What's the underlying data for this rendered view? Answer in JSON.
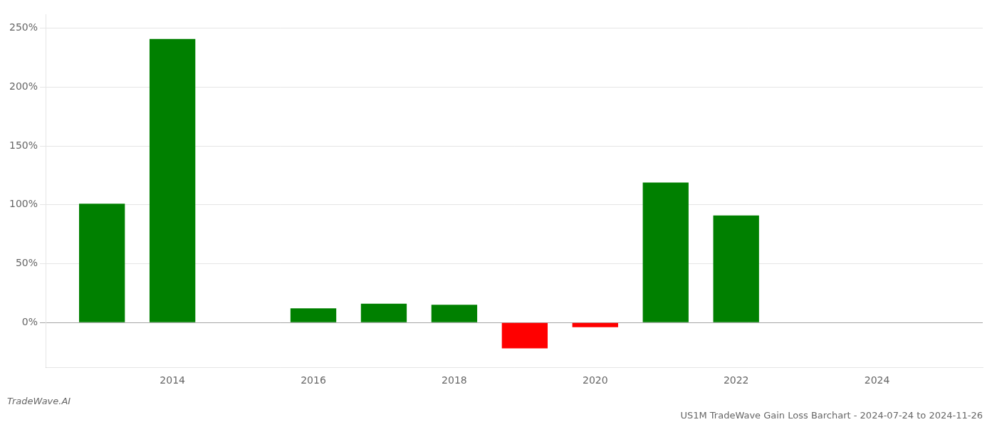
{
  "chart_data": {
    "type": "bar",
    "title": "US1M TradeWave Gain Loss Barchart - 2024-07-24 to 2024-11-26",
    "annotations": [
      "TradeWave.AI"
    ],
    "x": [
      2013,
      2014,
      2016,
      2017,
      2018,
      2019,
      2020,
      2021,
      2022
    ],
    "values": [
      1.01,
      2.41,
      0.12,
      0.16,
      0.15,
      -0.22,
      -0.04,
      1.19,
      0.91
    ],
    "colors": [
      "#008000",
      "#008000",
      "#008000",
      "#008000",
      "#008000",
      "#ff0000",
      "#ff0000",
      "#008000",
      "#008000"
    ],
    "xlim": [
      2012.2,
      2025.5
    ],
    "xticks": [
      2014,
      2016,
      2018,
      2020,
      2022,
      2024
    ],
    "ylim": [
      -0.38,
      2.62
    ],
    "yticks": [
      {
        "value": 0.0,
        "label": "0%"
      },
      {
        "value": 0.5,
        "label": "50%"
      },
      {
        "value": 1.0,
        "label": "100%"
      },
      {
        "value": 1.5,
        "label": "150%"
      },
      {
        "value": 2.0,
        "label": "200%"
      },
      {
        "value": 2.5,
        "label": "250%"
      }
    ],
    "grid": true
  }
}
